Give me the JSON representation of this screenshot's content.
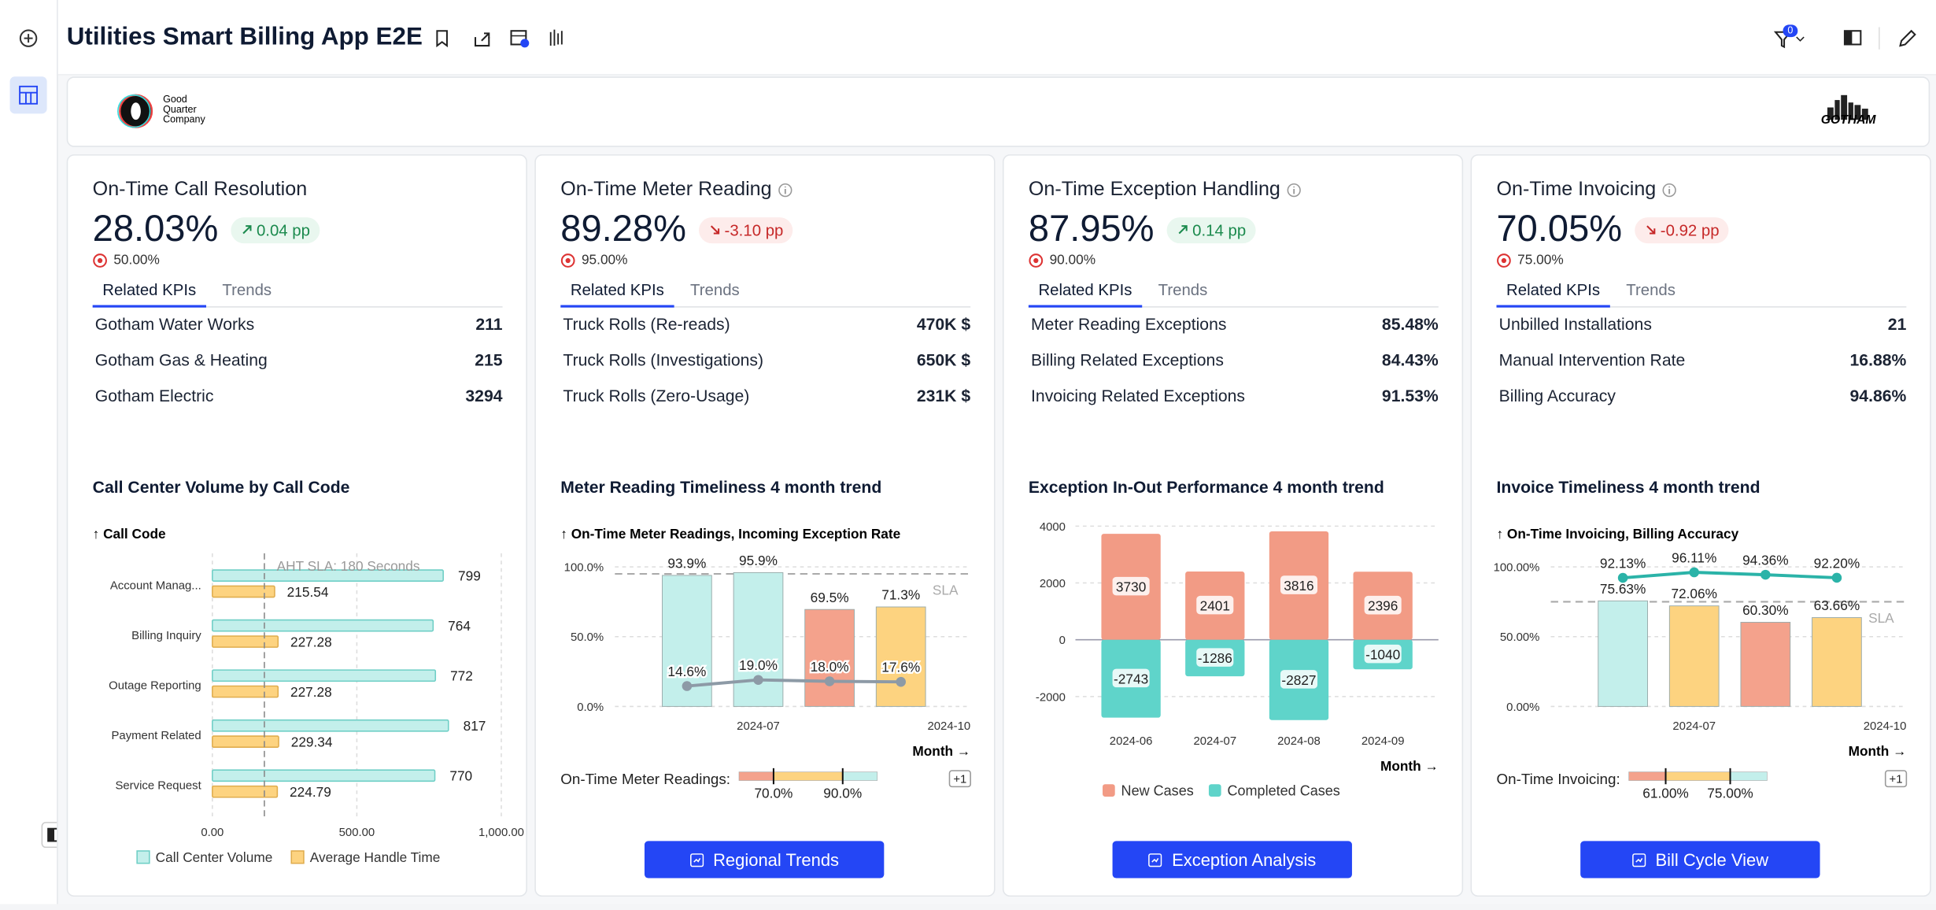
{
  "header": {
    "title": "Utilities Smart Billing App E2E",
    "filter_count": 0
  },
  "logos": {
    "left": [
      "Good",
      "Quarter",
      "Company"
    ],
    "right": "GOTHAM"
  },
  "cards": [
    {
      "title": "On-Time Call Resolution",
      "info_icon": false,
      "value": "28.03%",
      "delta": "0.04 pp",
      "trend": "up",
      "target": "50.00%",
      "tabs": [
        "Related KPIs",
        "Trends"
      ],
      "kpis": [
        {
          "name": "Gotham Water Works",
          "value": "211"
        },
        {
          "name": "Gotham Gas & Heating",
          "value": "215"
        },
        {
          "name": "Gotham Electric",
          "value": "3294"
        }
      ],
      "chart": {
        "type": "hbar",
        "title": "Call Center Volume by Call Code",
        "axis_title": "↑ Call Code",
        "categories": [
          "Account Manag...",
          "Billing Inquiry",
          "Outage Reporting",
          "Payment Related",
          "Service Request"
        ],
        "series": [
          {
            "name": "Call Center Volume",
            "color": "#c3efeb",
            "stroke": "#6fcfc6",
            "values": [
              799,
              764,
              772,
              817,
              770
            ]
          },
          {
            "name": "Average Handle Time",
            "color": "#fdd380",
            "stroke": "#e0ad4e",
            "values": [
              215.54,
              227.28,
              227.28,
              229.34,
              224.79
            ]
          }
        ],
        "xlim": [
          0,
          1000
        ],
        "xticks": [
          {
            "value": 0,
            "label": "0.00"
          },
          {
            "value": 500,
            "label": "500.00"
          },
          {
            "value": 1000,
            "label": "1,000.00"
          }
        ],
        "reference": {
          "value": 180,
          "label": "AHT SLA: 180 Seconds"
        }
      }
    },
    {
      "title": "On-Time Meter Reading",
      "info_icon": true,
      "value": "89.28%",
      "delta": "-3.10 pp",
      "trend": "down",
      "target": "95.00%",
      "tabs": [
        "Related KPIs",
        "Trends"
      ],
      "kpis": [
        {
          "name": "Truck Rolls (Re-reads)",
          "value": "470K $"
        },
        {
          "name": "Truck Rolls (Investigations)",
          "value": "650K $"
        },
        {
          "name": "Truck Rolls (Zero-Usage)",
          "value": "231K $"
        }
      ],
      "chart": {
        "type": "bar_line",
        "title": "Meter Reading Timeliness 4 month trend",
        "axis_title": "↑ On-Time Meter Readings, Incoming Exception Rate",
        "x_title": "Month →",
        "categories": [
          null,
          "2024-07",
          null,
          null
        ],
        "x_end_label": "2024-10",
        "series": [
          {
            "kind": "bar",
            "colors": [
              "#c3efeb",
              "#c3efeb",
              "#f4a28c",
              "#fdd380"
            ],
            "values": [
              93.9,
              95.9,
              69.5,
              71.3
            ],
            "value_labels": [
              "93.9%",
              "95.9%",
              "69.5%",
              "71.3%"
            ]
          },
          {
            "kind": "line",
            "color": "#8d9aa6",
            "values": [
              14.6,
              19.0,
              18.0,
              17.6
            ],
            "value_labels": [
              "14.6%",
              "19.0%",
              "18.0%",
              "17.6%"
            ]
          }
        ],
        "ylim": [
          0,
          100
        ],
        "yticks": [
          {
            "value": 0,
            "label": "0.0%"
          },
          {
            "value": 50,
            "label": "50.0%"
          },
          {
            "value": 100,
            "label": "100.0%"
          }
        ],
        "sla": {
          "value": 95,
          "label": "SLA"
        },
        "bullet": {
          "label": "On-Time Meter Readings:",
          "range": [
            60,
            100
          ],
          "colors": [
            "#f4a28c",
            "#fdd380",
            "#c3efeb"
          ],
          "thresholds": [
            {
              "value": 70,
              "label": "70.0%"
            },
            {
              "value": 90,
              "label": "90.0%"
            }
          ],
          "more": "+1"
        }
      },
      "button": "Regional Trends"
    },
    {
      "title": "On-Time Exception Handling",
      "info_icon": true,
      "value": "87.95%",
      "delta": "0.14 pp",
      "trend": "up",
      "target": "90.00%",
      "tabs": [
        "Related KPIs",
        "Trends"
      ],
      "kpis": [
        {
          "name": "Meter Reading Exceptions",
          "value": "85.48%"
        },
        {
          "name": "Billing Related Exceptions",
          "value": "84.43%"
        },
        {
          "name": "Invoicing Related Exceptions",
          "value": "91.53%"
        }
      ],
      "chart": {
        "type": "stacked_bar",
        "title": "Exception In-Out Performance 4 month trend",
        "x_title": "Month →",
        "categories": [
          "2024-06",
          "2024-07",
          "2024-08",
          "2024-09"
        ],
        "series": [
          {
            "name": "New Cases",
            "color": "#f29b85",
            "values": [
              3730,
              2401,
              3816,
              2396
            ]
          },
          {
            "name": "Completed Cases",
            "color": "#5fd4ca",
            "values": [
              -2743,
              -1286,
              -2827,
              -1040
            ]
          }
        ],
        "ylim": [
          -3000,
          4000
        ],
        "yticks": [
          -2000,
          0,
          2000,
          4000
        ]
      },
      "button": "Exception Analysis"
    },
    {
      "title": "On-Time Invoicing",
      "info_icon": true,
      "value": "70.05%",
      "delta": "-0.92 pp",
      "trend": "down",
      "target": "75.00%",
      "tabs": [
        "Related KPIs",
        "Trends"
      ],
      "kpis": [
        {
          "name": "Unbilled Installations",
          "value": "21"
        },
        {
          "name": "Manual Intervention Rate",
          "value": "16.88%"
        },
        {
          "name": "Billing Accuracy",
          "value": "94.86%"
        }
      ],
      "chart": {
        "type": "bar_line",
        "title": "Invoice Timeliness 4 month trend",
        "axis_title": "↑ On-Time Invoicing, Billing Accuracy",
        "x_title": "Month →",
        "categories": [
          null,
          "2024-07",
          null,
          null
        ],
        "x_end_label": "2024-10",
        "series": [
          {
            "kind": "bar",
            "colors": [
              "#c3efeb",
              "#fdd380",
              "#f4a28c",
              "#fdd380"
            ],
            "values": [
              75.63,
              72.06,
              60.3,
              63.66
            ],
            "value_labels": [
              "75.63%",
              "72.06%",
              "60.30%",
              "63.66%"
            ]
          },
          {
            "kind": "line",
            "color": "#2bb3a8",
            "values": [
              92.13,
              96.11,
              94.36,
              92.2
            ],
            "value_labels": [
              "92.13%",
              "96.11%",
              "94.36%",
              "92.20%"
            ]
          }
        ],
        "ylim": [
          0,
          100
        ],
        "yticks": [
          {
            "value": 0,
            "label": "0.00%"
          },
          {
            "value": 50,
            "label": "50.00%"
          },
          {
            "value": 100,
            "label": "100.00%"
          }
        ],
        "sla": {
          "value": 75,
          "label": "SLA"
        },
        "bullet": {
          "label": "On-Time Invoicing:",
          "range": [
            53,
            83
          ],
          "colors": [
            "#f4a28c",
            "#fdd380",
            "#c3efeb"
          ],
          "thresholds": [
            {
              "value": 61,
              "label": "61.00%"
            },
            {
              "value": 75,
              "label": "75.00%"
            }
          ],
          "more": "+1"
        }
      },
      "button": "Bill Cycle View"
    }
  ]
}
